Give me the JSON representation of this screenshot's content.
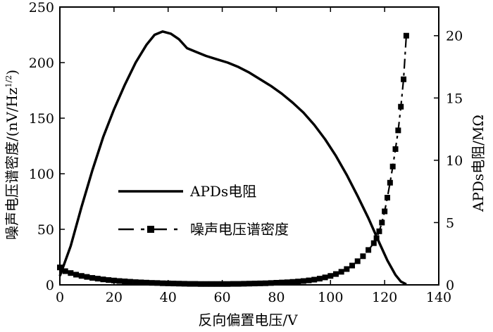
{
  "chart_data": {
    "type": "line",
    "x": {
      "label": "反向偏置电压/V",
      "ticks": [
        0,
        20,
        40,
        60,
        80,
        100,
        120,
        140
      ],
      "range": [
        0,
        140
      ]
    },
    "y_left": {
      "label_main": "噪声电压谱密度/(nV/Hz",
      "label_sup": "1/2",
      "label_close": ")",
      "ticks": [
        0,
        50,
        100,
        150,
        200,
        250
      ],
      "range": [
        0,
        250
      ]
    },
    "y_right": {
      "label": "APDs电阻/MΩ",
      "ticks": [
        0,
        5,
        10,
        15,
        20
      ],
      "range": [
        0,
        22.3
      ]
    },
    "series": [
      {
        "name": "APDs电阻",
        "axis": "left",
        "style": "solid",
        "points": [
          [
            0,
            8
          ],
          [
            4,
            35
          ],
          [
            8,
            70
          ],
          [
            12,
            103
          ],
          [
            16,
            133
          ],
          [
            20,
            158
          ],
          [
            24,
            180
          ],
          [
            28,
            200
          ],
          [
            32,
            216
          ],
          [
            35,
            225
          ],
          [
            38,
            228
          ],
          [
            41,
            226
          ],
          [
            44,
            221
          ],
          [
            47,
            213
          ],
          [
            50,
            210
          ],
          [
            54,
            206
          ],
          [
            58,
            203
          ],
          [
            62,
            200
          ],
          [
            66,
            196
          ],
          [
            70,
            191
          ],
          [
            74,
            185
          ],
          [
            78,
            179
          ],
          [
            82,
            172
          ],
          [
            86,
            164
          ],
          [
            90,
            155
          ],
          [
            94,
            144
          ],
          [
            98,
            131
          ],
          [
            102,
            116
          ],
          [
            106,
            99
          ],
          [
            110,
            80
          ],
          [
            114,
            60
          ],
          [
            118,
            38
          ],
          [
            121,
            22
          ],
          [
            124,
            9
          ],
          [
            126,
            3
          ],
          [
            128,
            0.5
          ]
        ]
      },
      {
        "name": "噪声电压谱密度",
        "axis": "right",
        "style": "dash-square",
        "points": [
          [
            0,
            1.4
          ],
          [
            2,
            1.1
          ],
          [
            4,
            0.95
          ],
          [
            6,
            0.82
          ],
          [
            8,
            0.72
          ],
          [
            10,
            0.64
          ],
          [
            12,
            0.56
          ],
          [
            14,
            0.5
          ],
          [
            16,
            0.44
          ],
          [
            18,
            0.39
          ],
          [
            20,
            0.35
          ],
          [
            22,
            0.31
          ],
          [
            24,
            0.28
          ],
          [
            26,
            0.25
          ],
          [
            28,
            0.22
          ],
          [
            30,
            0.2
          ],
          [
            32,
            0.18
          ],
          [
            34,
            0.16
          ],
          [
            36,
            0.15
          ],
          [
            38,
            0.13
          ],
          [
            40,
            0.12
          ],
          [
            42,
            0.11
          ],
          [
            44,
            0.1
          ],
          [
            46,
            0.09
          ],
          [
            48,
            0.08
          ],
          [
            50,
            0.08
          ],
          [
            52,
            0.07
          ],
          [
            54,
            0.07
          ],
          [
            56,
            0.07
          ],
          [
            58,
            0.07
          ],
          [
            60,
            0.07
          ],
          [
            62,
            0.07
          ],
          [
            64,
            0.08
          ],
          [
            66,
            0.08
          ],
          [
            68,
            0.09
          ],
          [
            70,
            0.1
          ],
          [
            72,
            0.11
          ],
          [
            74,
            0.12
          ],
          [
            76,
            0.13
          ],
          [
            78,
            0.15
          ],
          [
            80,
            0.17
          ],
          [
            82,
            0.19
          ],
          [
            84,
            0.21
          ],
          [
            86,
            0.24
          ],
          [
            88,
            0.27
          ],
          [
            90,
            0.31
          ],
          [
            92,
            0.36
          ],
          [
            94,
            0.42
          ],
          [
            96,
            0.5
          ],
          [
            98,
            0.6
          ],
          [
            100,
            0.72
          ],
          [
            102,
            0.87
          ],
          [
            104,
            1.05
          ],
          [
            106,
            1.27
          ],
          [
            108,
            1.55
          ],
          [
            110,
            1.9
          ],
          [
            112,
            2.3
          ],
          [
            114,
            2.8
          ],
          [
            116,
            3.35
          ],
          [
            117,
            3.75
          ],
          [
            118,
            4.3
          ],
          [
            119,
            5.0
          ],
          [
            120,
            5.9
          ],
          [
            121,
            7.0
          ],
          [
            122,
            8.2
          ],
          [
            123,
            9.5
          ],
          [
            124,
            10.9
          ],
          [
            125,
            12.4
          ],
          [
            126,
            14.3
          ],
          [
            127,
            16.5
          ],
          [
            128,
            20.0
          ]
        ]
      }
    ],
    "legend": {
      "placement": "center-left",
      "entries": [
        "APDs电阻",
        "噪声电压谱密度"
      ]
    },
    "grid": false
  }
}
